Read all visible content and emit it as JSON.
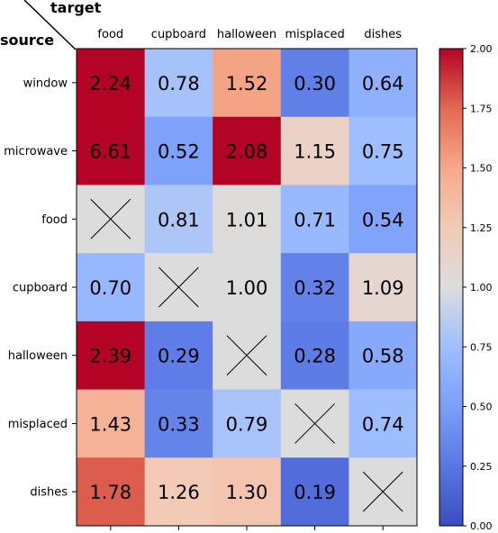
{
  "chart_data": {
    "type": "heatmap",
    "corner_labels": {
      "columns": "target",
      "rows": "source"
    },
    "columns": [
      "food",
      "cupboard",
      "halloween",
      "misplaced",
      "dishes"
    ],
    "rows": [
      "window",
      "microwave",
      "food",
      "cupboard",
      "halloween",
      "misplaced",
      "dishes"
    ],
    "values": [
      [
        2.24,
        0.78,
        1.52,
        0.3,
        0.64
      ],
      [
        6.61,
        0.52,
        2.08,
        1.15,
        0.75
      ],
      [
        null,
        0.81,
        1.01,
        0.71,
        0.54
      ],
      [
        0.7,
        null,
        1.0,
        0.32,
        1.09
      ],
      [
        2.39,
        0.29,
        null,
        0.28,
        0.58
      ],
      [
        1.43,
        0.33,
        0.79,
        null,
        0.74
      ],
      [
        1.78,
        1.26,
        1.3,
        0.19,
        null
      ]
    ],
    "value_labels": [
      [
        "2.24",
        "0.78",
        "1.52",
        "0.30",
        "0.64"
      ],
      [
        "6.61",
        "0.52",
        "2.08",
        "1.15",
        "0.75"
      ],
      [
        "",
        "0.81",
        "1.01",
        "0.71",
        "0.54"
      ],
      [
        "0.70",
        "",
        "1.00",
        "0.32",
        "1.09"
      ],
      [
        "2.39",
        "0.29",
        "",
        "0.28",
        "0.58"
      ],
      [
        "1.43",
        "0.33",
        "0.79",
        "",
        "0.74"
      ],
      [
        "1.78",
        "1.26",
        "1.30",
        "0.19",
        ""
      ]
    ],
    "missing_marker": "cross",
    "colormap": "coolwarm",
    "colorbar": {
      "range": [
        0,
        2
      ],
      "ticks": [
        "0.00",
        "0.25",
        "0.50",
        "0.75",
        "1.00",
        "1.25",
        "1.50",
        "1.75",
        "2.00"
      ]
    }
  }
}
